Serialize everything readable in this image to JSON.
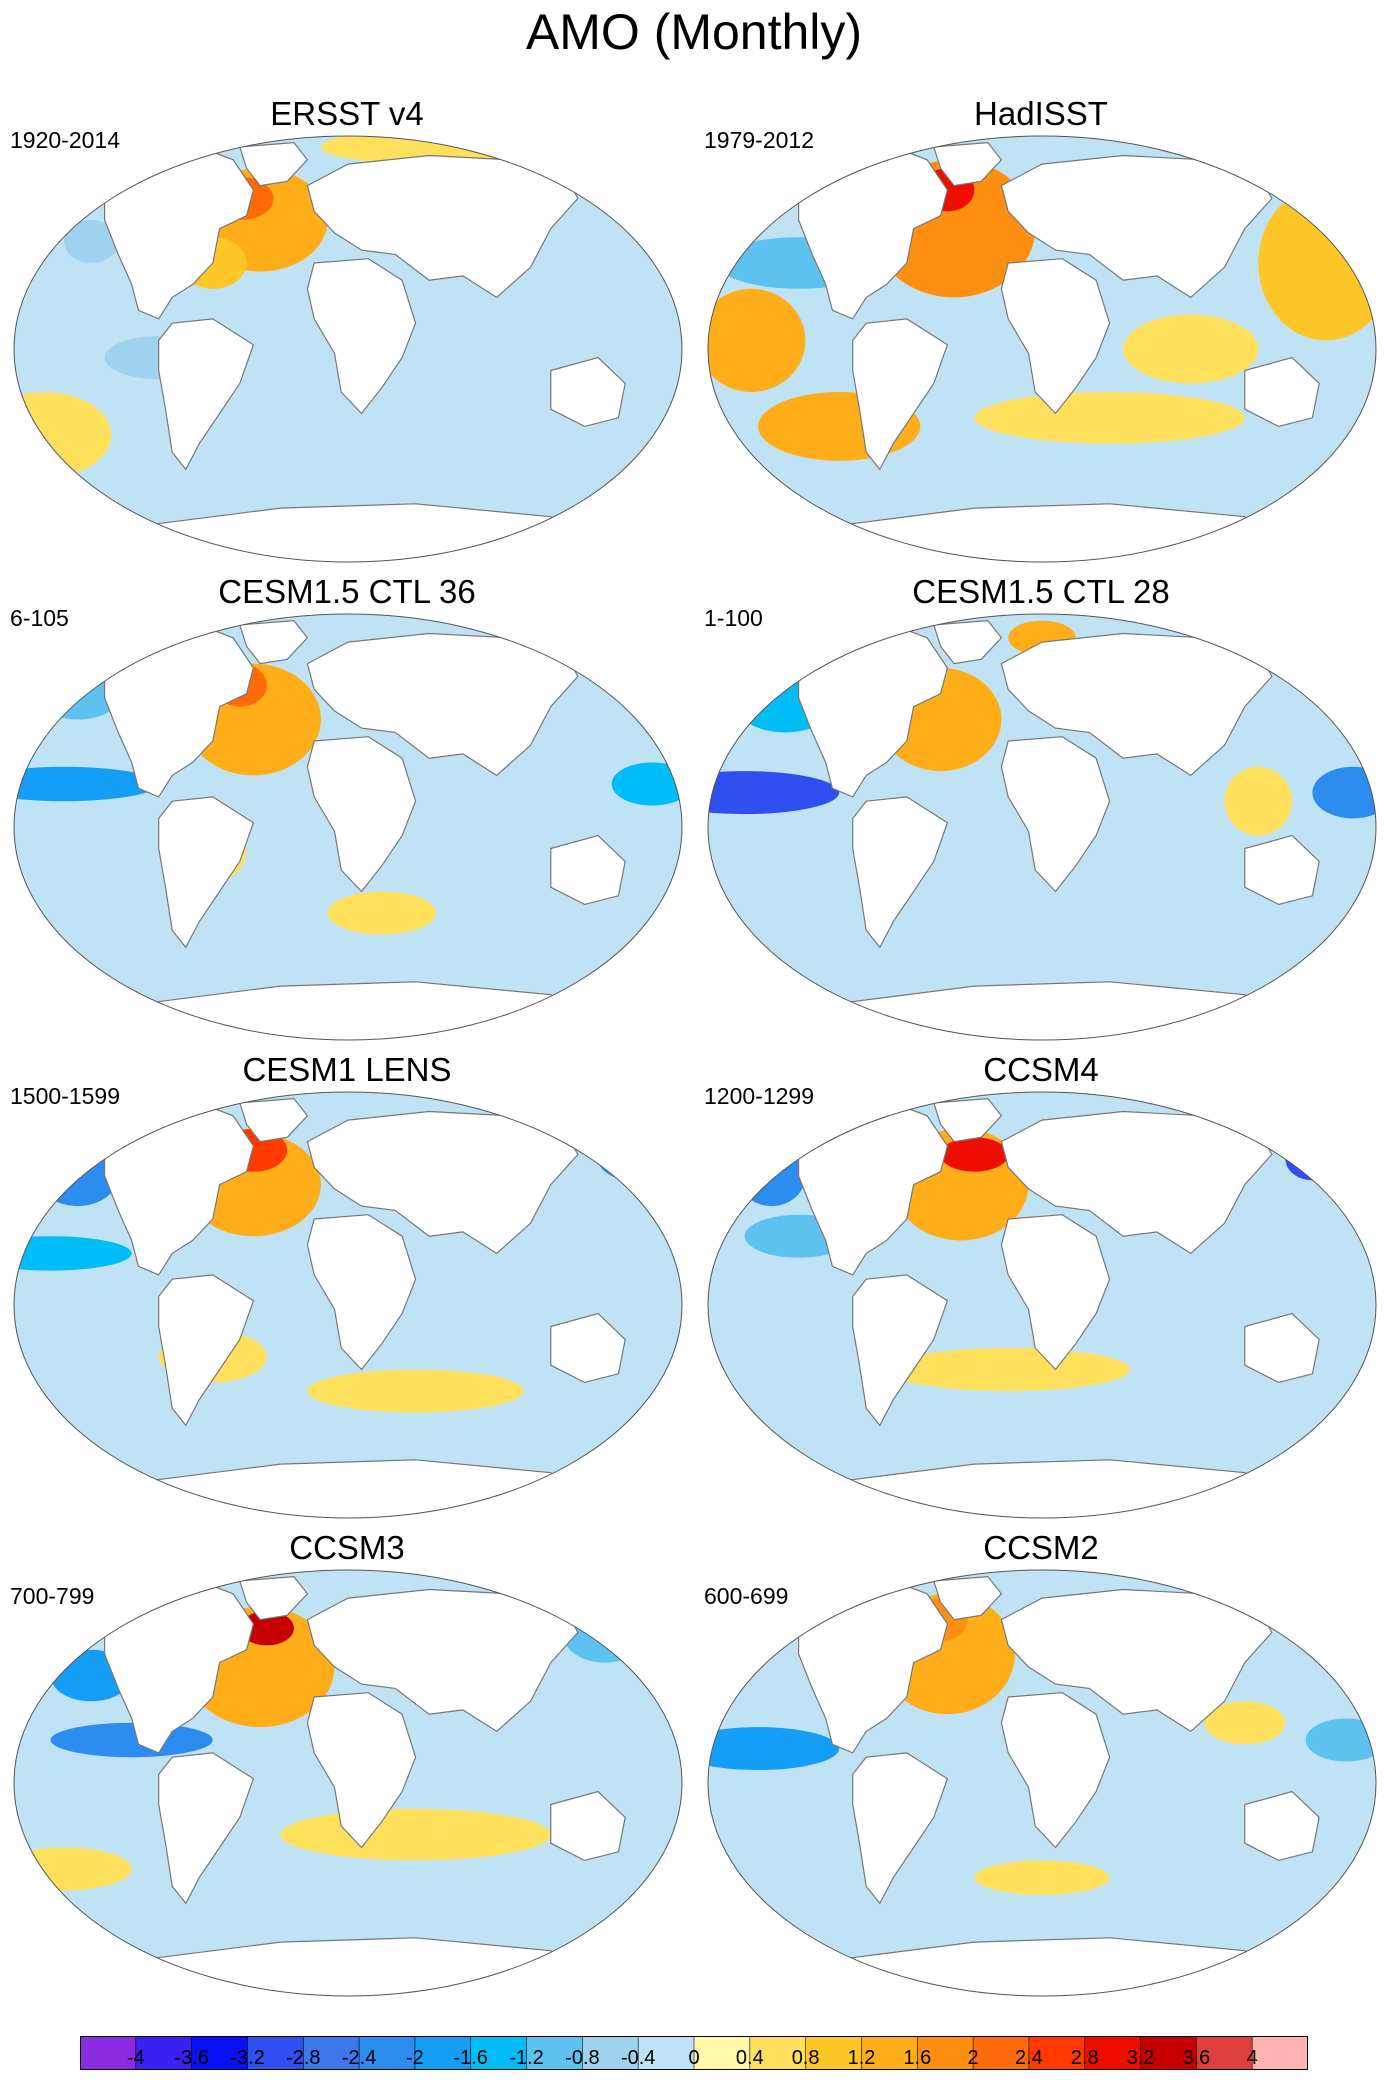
{
  "title": "AMO (Monthly)",
  "panels": [
    {
      "name": "ERSST v4",
      "period": "1920-2014"
    },
    {
      "name": "HadISST",
      "period": "1979-2012"
    },
    {
      "name": "CESM1.5 CTL 36",
      "period": "6-105"
    },
    {
      "name": "CESM1.5 CTL 28",
      "period": "1-100"
    },
    {
      "name": "CESM1 LENS",
      "period": "1500-1599"
    },
    {
      "name": "CCSM4",
      "period": "1200-1299"
    },
    {
      "name": "CCSM3",
      "period": "700-799"
    },
    {
      "name": "CCSM2",
      "period": "600-699"
    }
  ],
  "colorbar": {
    "colors": [
      "#8a2be2",
      "#3c1ff2",
      "#0a10f5",
      "#2f4ff0",
      "#3c78ea",
      "#2c8cf0",
      "#149ef5",
      "#00bdf8",
      "#5ec2f0",
      "#9fd2ef",
      "#bfe3f5",
      "#fff9a8",
      "#ffe05c",
      "#ffc628",
      "#ffae19",
      "#ff8f11",
      "#ff6a08",
      "#ff3a00",
      "#ef0d00",
      "#c60000",
      "#dd3f3f",
      "#ffb3b3"
    ],
    "labels": [
      "-4",
      "-3.6",
      "-3.2",
      "-2.8",
      "-2.4",
      "-2",
      "-1.6",
      "-1.2",
      "-0.8",
      "-0.4",
      "0",
      "0.4",
      "0.8",
      "1.2",
      "1.6",
      "2",
      "2.4",
      "2.8",
      "3.2",
      "3.6",
      "4"
    ]
  }
}
